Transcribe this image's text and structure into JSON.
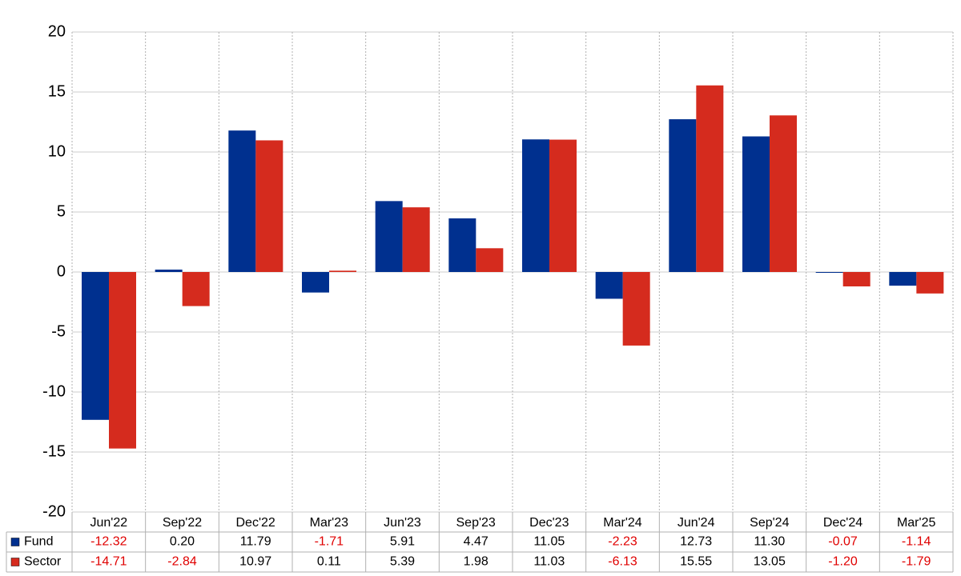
{
  "chart_data": {
    "type": "bar",
    "categories": [
      "Jun'22",
      "Sep'22",
      "Dec'22",
      "Mar'23",
      "Jun'23",
      "Sep'23",
      "Dec'23",
      "Mar'24",
      "Jun'24",
      "Sep'24",
      "Dec'24",
      "Mar'25"
    ],
    "series": [
      {
        "name": "Fund",
        "color": "#00308f",
        "values": [
          -12.32,
          0.2,
          11.79,
          -1.71,
          5.91,
          4.47,
          11.05,
          -2.23,
          12.73,
          11.3,
          -0.07,
          -1.14
        ],
        "value_labels": [
          "-12.32",
          "0.20",
          "11.79",
          "-1.71",
          "5.91",
          "4.47",
          "11.05",
          "-2.23",
          "12.73",
          "11.30",
          "-0.07",
          "-1.14"
        ]
      },
      {
        "name": "Sector",
        "color": "#d52b1e",
        "values": [
          -14.71,
          -2.84,
          10.97,
          0.11,
          5.39,
          1.98,
          11.03,
          -6.13,
          15.55,
          13.05,
          -1.2,
          -1.79
        ],
        "value_labels": [
          "-14.71",
          "-2.84",
          "10.97",
          "0.11",
          "5.39",
          "1.98",
          "11.03",
          "-6.13",
          "15.55",
          "13.05",
          "-1.20",
          "-1.79"
        ]
      }
    ],
    "ylim": [
      -20,
      20
    ],
    "yticks": [
      -20,
      -15,
      -10,
      -5,
      0,
      5,
      10,
      15,
      20
    ],
    "grid": true
  }
}
